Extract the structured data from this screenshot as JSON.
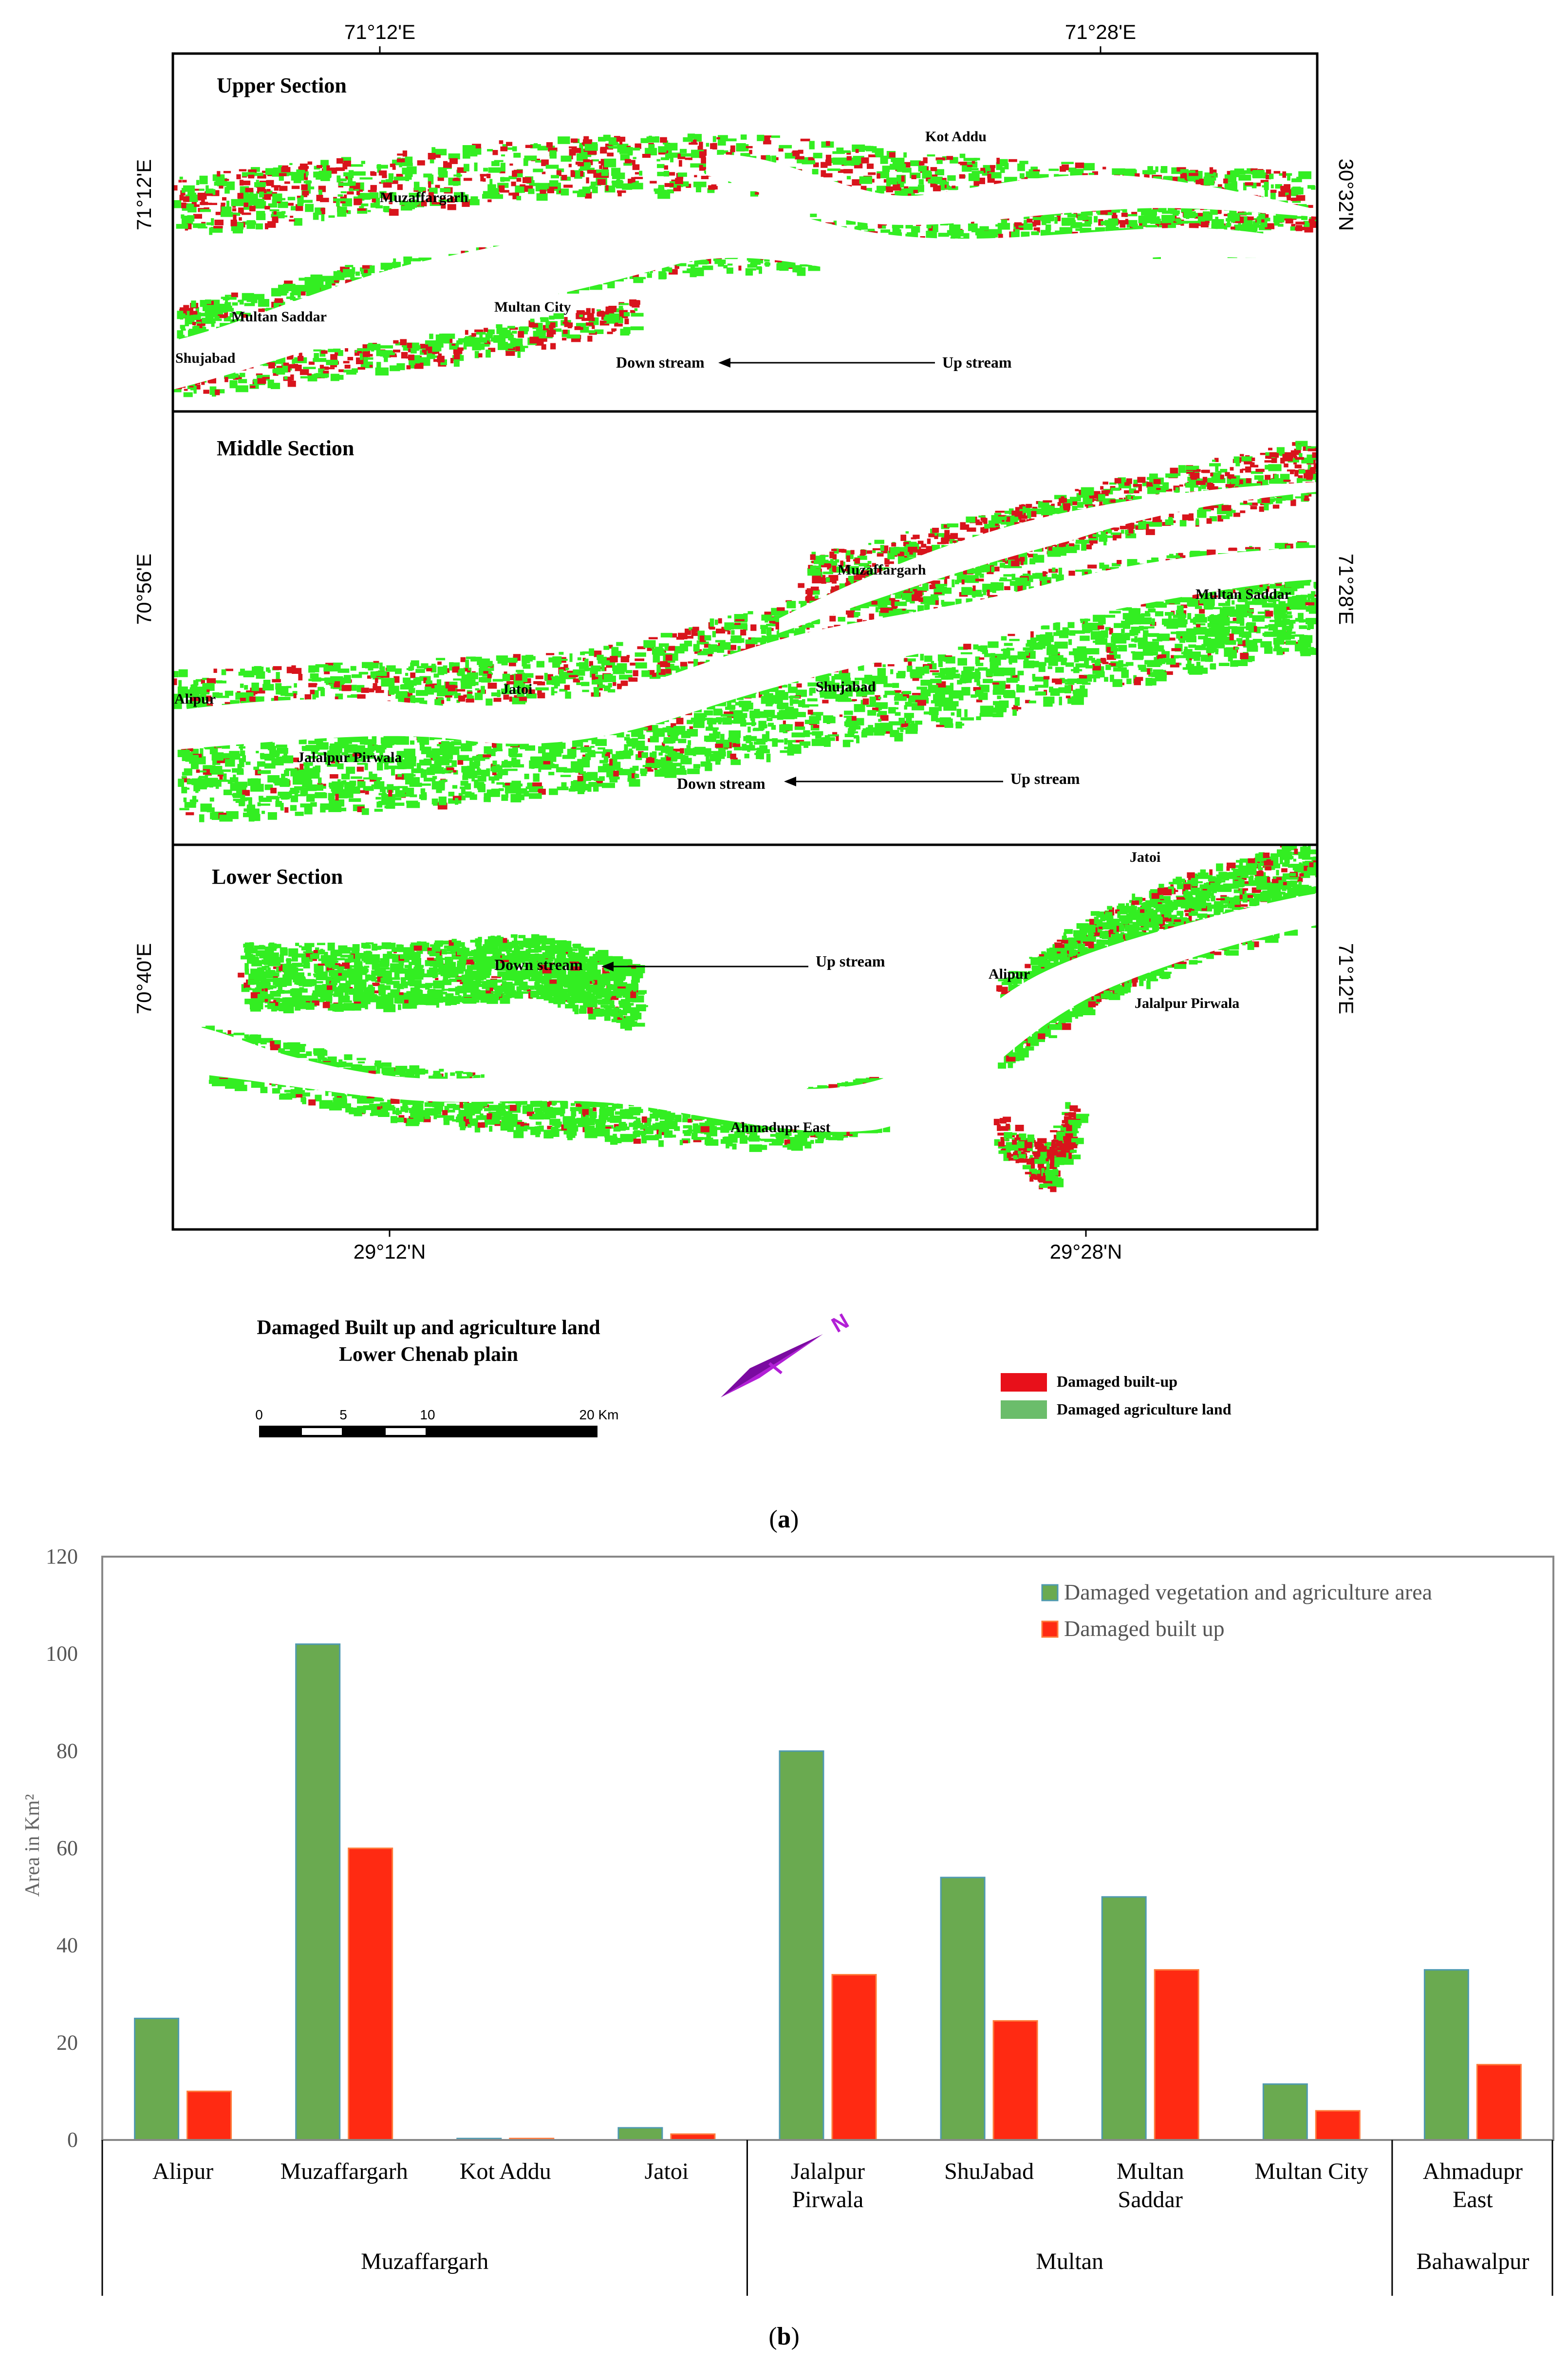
{
  "panel_a": {
    "caption_letter": "a",
    "top_coords": [
      "71°12'E",
      "71°28'E"
    ],
    "bottom_coords": [
      "29°12'N",
      "29°28'N"
    ],
    "sections": [
      {
        "title": "Upper Section",
        "left_coord": "71°12'E",
        "right_coord": "30°32'N",
        "places": [
          "Kot Addu",
          "Muzaffargarh",
          "Multan Saddar",
          "Multan City",
          "Shujabad"
        ],
        "downstream": "Down stream",
        "upstream": "Up stream"
      },
      {
        "title": "Middle Section",
        "left_coord": "70°56'E",
        "right_coord": "71°28'E",
        "places": [
          "Muzaffargarh",
          "Multan Saddar",
          "Alipur",
          "Jatoi",
          "Shujabad",
          "Jalalpur Pirwala"
        ],
        "downstream": "Down stream",
        "upstream": "Up stream"
      },
      {
        "title": "Lower Section",
        "left_coord": "70°40'E",
        "right_coord": "71°12'E",
        "places": [
          "Jatoi",
          "Alipur",
          "Jalalpur Pirwala",
          "Ahmadupr East"
        ],
        "downstream": "Down stream",
        "upstream": "Up stream"
      }
    ],
    "map_title_line1": "Damaged Built up and agriculture land",
    "map_title_line2": "Lower Chenab plain",
    "north_label": "N",
    "scale_ticks": [
      "0",
      "5",
      "10",
      "20 Km"
    ],
    "legend": [
      {
        "label": "Damaged built-up",
        "color": "#e8101a"
      },
      {
        "label": "Damaged agriculture land",
        "color": "#6bbd6b"
      }
    ],
    "colors": {
      "builtup": "#d8141c",
      "agri": "#33ee22",
      "water": "#ffffff",
      "north_arrow": "#b21fd6"
    }
  },
  "panel_b": {
    "caption_letter": "b",
    "colors": {
      "veg": "#6aaa50",
      "veg_edge": "#4f9ab0",
      "built": "#ff2a12",
      "built_edge": "#ff7a3a",
      "axis": "#888888"
    }
  },
  "chart_data": {
    "type": "bar",
    "title": "",
    "xlabel": "",
    "ylabel": "Area in Km²",
    "ylim": [
      0,
      120
    ],
    "yticks": [
      0,
      20,
      40,
      60,
      80,
      100,
      120
    ],
    "categories": [
      "Alipur",
      "Muzaffargarh",
      "Kot Addu",
      "Jatoi",
      "Jalalpur Pirwala",
      "ShuJabad",
      "Multan Saddar",
      "Multan City",
      "Ahmadupr East"
    ],
    "category_lines": [
      [
        "Alipur"
      ],
      [
        "Muzaffargarh"
      ],
      [
        "Kot Addu"
      ],
      [
        "Jatoi"
      ],
      [
        "Jalalpur",
        "Pirwala"
      ],
      [
        "ShuJabad"
      ],
      [
        "Multan",
        "Saddar"
      ],
      [
        "Multan City"
      ],
      [
        "Ahmadupr",
        "East"
      ]
    ],
    "groups": [
      {
        "name": "Muzaffargarh",
        "categories": [
          "Alipur",
          "Muzaffargarh",
          "Kot Addu",
          "Jatoi"
        ]
      },
      {
        "name": "Multan",
        "categories": [
          "Jalalpur Pirwala",
          "ShuJabad",
          "Multan Saddar",
          "Multan City"
        ]
      },
      {
        "name": "Bahawalpur",
        "categories": [
          "Ahmadupr East"
        ]
      }
    ],
    "series": [
      {
        "name": "Damaged vegetation and agriculture area",
        "values": [
          25,
          102,
          0.3,
          2.5,
          80,
          54,
          50,
          11.5,
          35
        ]
      },
      {
        "name": "Damaged built up",
        "values": [
          10,
          60,
          0.3,
          1.2,
          34,
          24.5,
          35,
          6,
          15.5
        ]
      }
    ],
    "legend_position": "top-right",
    "grid": false
  }
}
